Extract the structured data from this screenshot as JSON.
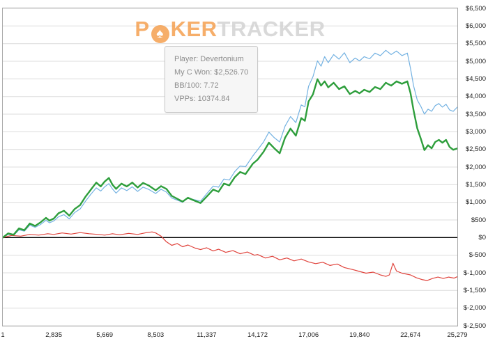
{
  "watermark": {
    "prefix": "P",
    "spade": "♠",
    "middle": "KER",
    "suffix": "TRACKER"
  },
  "tooltip": {
    "lines": [
      "Player: Devertonium",
      "My C Won: $2,526.70",
      "BB/100: 7.72",
      "VPPs: 10374.84"
    ]
  },
  "colors": {
    "green_line": "#2e9e3c",
    "blue_line": "#74b2e2",
    "red_line": "#e0433c",
    "grid": "#dcdcdc",
    "zero_line": "#000000",
    "plot_border": "#a9a9a9",
    "watermark_orange": "#f49a45",
    "watermark_gray": "#d0d0d0"
  },
  "chart_data": {
    "type": "line",
    "title": "",
    "xlabel": "",
    "ylabel": "",
    "grid": "horizontal",
    "legend": "none",
    "x_axis": {
      "min": 1,
      "max": 25279,
      "tick_values": [
        1,
        2835,
        5669,
        8503,
        11337,
        14172,
        17006,
        19840,
        22674,
        25279
      ],
      "tick_labels": [
        "1",
        "2,835",
        "5,669",
        "8,503",
        "11,337",
        "14,172",
        "17,006",
        "19,840",
        "22,674",
        "25,279"
      ]
    },
    "y_axis": {
      "min": -2500,
      "max": 6500,
      "tick_step": 500,
      "tick_values": [
        6500,
        6000,
        5500,
        5000,
        4500,
        4000,
        3500,
        3000,
        2500,
        2000,
        1500,
        1000,
        500,
        0,
        -500,
        -1000,
        -1500,
        -2000,
        -2500
      ],
      "tick_labels": [
        "$6,500",
        "$6,000",
        "$5,500",
        "$5,000",
        "$4,500",
        "$4,000",
        "$3,500",
        "$3,000",
        "$2,500",
        "$2,000",
        "$1,500",
        "$1,000",
        "$500",
        "$0",
        "$-500",
        "$-1,000",
        "$-1,500",
        "$-2,000",
        "$-2,500"
      ]
    },
    "series": [
      {
        "name": "blue-line",
        "color": "#74b2e2",
        "stroke_width": 1.2,
        "points": [
          [
            0,
            0
          ],
          [
            300,
            90
          ],
          [
            600,
            60
          ],
          [
            900,
            220
          ],
          [
            1200,
            180
          ],
          [
            1500,
            350
          ],
          [
            1800,
            290
          ],
          [
            2100,
            370
          ],
          [
            2400,
            490
          ],
          [
            2600,
            420
          ],
          [
            2835,
            470
          ],
          [
            3100,
            590
          ],
          [
            3400,
            650
          ],
          [
            3700,
            530
          ],
          [
            4000,
            710
          ],
          [
            4300,
            810
          ],
          [
            4600,
            1030
          ],
          [
            4900,
            1230
          ],
          [
            5200,
            1410
          ],
          [
            5450,
            1320
          ],
          [
            5669,
            1440
          ],
          [
            5900,
            1530
          ],
          [
            6100,
            1380
          ],
          [
            6300,
            1260
          ],
          [
            6600,
            1410
          ],
          [
            6900,
            1330
          ],
          [
            7200,
            1440
          ],
          [
            7500,
            1310
          ],
          [
            7800,
            1430
          ],
          [
            8100,
            1370
          ],
          [
            8503,
            1250
          ],
          [
            8800,
            1370
          ],
          [
            9100,
            1290
          ],
          [
            9400,
            1120
          ],
          [
            9700,
            1060
          ],
          [
            10000,
            1000
          ],
          [
            10300,
            1120
          ],
          [
            10600,
            1080
          ],
          [
            11000,
            1030
          ],
          [
            11337,
            1240
          ],
          [
            11700,
            1460
          ],
          [
            12000,
            1430
          ],
          [
            12300,
            1660
          ],
          [
            12600,
            1630
          ],
          [
            12900,
            1870
          ],
          [
            13200,
            2030
          ],
          [
            13500,
            2010
          ],
          [
            13900,
            2310
          ],
          [
            14172,
            2490
          ],
          [
            14500,
            2710
          ],
          [
            14800,
            2990
          ],
          [
            15100,
            2830
          ],
          [
            15400,
            2710
          ],
          [
            15700,
            3160
          ],
          [
            16000,
            3430
          ],
          [
            16300,
            3260
          ],
          [
            16600,
            3760
          ],
          [
            16800,
            3710
          ],
          [
            17006,
            4290
          ],
          [
            17250,
            4560
          ],
          [
            17500,
            5010
          ],
          [
            17700,
            4860
          ],
          [
            17900,
            5130
          ],
          [
            18100,
            4960
          ],
          [
            18400,
            5190
          ],
          [
            18700,
            5060
          ],
          [
            19000,
            5240
          ],
          [
            19300,
            4960
          ],
          [
            19600,
            5090
          ],
          [
            19840,
            5010
          ],
          [
            20100,
            5130
          ],
          [
            20400,
            5070
          ],
          [
            20700,
            5230
          ],
          [
            21000,
            5160
          ],
          [
            21300,
            5310
          ],
          [
            21600,
            5190
          ],
          [
            21900,
            5290
          ],
          [
            22200,
            5160
          ],
          [
            22500,
            5230
          ],
          [
            22674,
            4800
          ],
          [
            22850,
            4300
          ],
          [
            23050,
            3900
          ],
          [
            23250,
            3720
          ],
          [
            23450,
            3500
          ],
          [
            23650,
            3640
          ],
          [
            23850,
            3580
          ],
          [
            24050,
            3740
          ],
          [
            24250,
            3800
          ],
          [
            24450,
            3700
          ],
          [
            24650,
            3780
          ],
          [
            24850,
            3620
          ],
          [
            25050,
            3580
          ],
          [
            25279,
            3700
          ]
        ]
      },
      {
        "name": "red-line",
        "color": "#e0433c",
        "stroke_width": 1.2,
        "points": [
          [
            0,
            0
          ],
          [
            500,
            60
          ],
          [
            1000,
            40
          ],
          [
            1500,
            90
          ],
          [
            2000,
            70
          ],
          [
            2500,
            110
          ],
          [
            2835,
            90
          ],
          [
            3300,
            130
          ],
          [
            3800,
            100
          ],
          [
            4300,
            140
          ],
          [
            4800,
            110
          ],
          [
            5300,
            90
          ],
          [
            5669,
            70
          ],
          [
            6100,
            110
          ],
          [
            6500,
            80
          ],
          [
            7000,
            120
          ],
          [
            7500,
            90
          ],
          [
            8000,
            140
          ],
          [
            8300,
            160
          ],
          [
            8503,
            130
          ],
          [
            8800,
            40
          ],
          [
            9100,
            -120
          ],
          [
            9400,
            -220
          ],
          [
            9700,
            -170
          ],
          [
            10000,
            -260
          ],
          [
            10300,
            -210
          ],
          [
            10700,
            -300
          ],
          [
            11000,
            -340
          ],
          [
            11337,
            -290
          ],
          [
            11700,
            -380
          ],
          [
            12000,
            -330
          ],
          [
            12400,
            -420
          ],
          [
            12800,
            -370
          ],
          [
            13200,
            -460
          ],
          [
            13600,
            -410
          ],
          [
            14000,
            -500
          ],
          [
            14172,
            -480
          ],
          [
            14600,
            -580
          ],
          [
            15000,
            -530
          ],
          [
            15400,
            -630
          ],
          [
            15800,
            -580
          ],
          [
            16200,
            -660
          ],
          [
            16600,
            -610
          ],
          [
            17006,
            -690
          ],
          [
            17400,
            -740
          ],
          [
            17800,
            -700
          ],
          [
            18200,
            -790
          ],
          [
            18600,
            -750
          ],
          [
            19000,
            -850
          ],
          [
            19400,
            -900
          ],
          [
            19840,
            -960
          ],
          [
            20200,
            -1010
          ],
          [
            20600,
            -980
          ],
          [
            21000,
            -1060
          ],
          [
            21300,
            -1100
          ],
          [
            21500,
            -1060
          ],
          [
            21700,
            -730
          ],
          [
            21900,
            -950
          ],
          [
            22200,
            -1010
          ],
          [
            22674,
            -1060
          ],
          [
            23000,
            -1140
          ],
          [
            23300,
            -1190
          ],
          [
            23600,
            -1220
          ],
          [
            23900,
            -1160
          ],
          [
            24200,
            -1120
          ],
          [
            24500,
            -1160
          ],
          [
            24800,
            -1120
          ],
          [
            25100,
            -1150
          ],
          [
            25279,
            -1110
          ]
        ]
      },
      {
        "name": "green-line-my-c-won",
        "color": "#2e9e3c",
        "stroke_width": 2.4,
        "points": [
          [
            0,
            0
          ],
          [
            300,
            120
          ],
          [
            600,
            80
          ],
          [
            900,
            260
          ],
          [
            1200,
            210
          ],
          [
            1500,
            400
          ],
          [
            1800,
            330
          ],
          [
            2100,
            430
          ],
          [
            2400,
            560
          ],
          [
            2600,
            480
          ],
          [
            2835,
            540
          ],
          [
            3100,
            690
          ],
          [
            3400,
            760
          ],
          [
            3700,
            620
          ],
          [
            4000,
            810
          ],
          [
            4300,
            920
          ],
          [
            4600,
            1160
          ],
          [
            4900,
            1360
          ],
          [
            5200,
            1560
          ],
          [
            5450,
            1450
          ],
          [
            5669,
            1590
          ],
          [
            5900,
            1690
          ],
          [
            6100,
            1500
          ],
          [
            6300,
            1380
          ],
          [
            6600,
            1530
          ],
          [
            6900,
            1450
          ],
          [
            7200,
            1560
          ],
          [
            7500,
            1420
          ],
          [
            7800,
            1550
          ],
          [
            8100,
            1480
          ],
          [
            8503,
            1340
          ],
          [
            8800,
            1460
          ],
          [
            9100,
            1380
          ],
          [
            9400,
            1180
          ],
          [
            9700,
            1100
          ],
          [
            10000,
            1020
          ],
          [
            10300,
            1130
          ],
          [
            10600,
            1060
          ],
          [
            11000,
            980
          ],
          [
            11337,
            1160
          ],
          [
            11700,
            1360
          ],
          [
            12000,
            1300
          ],
          [
            12300,
            1530
          ],
          [
            12600,
            1480
          ],
          [
            12900,
            1710
          ],
          [
            13200,
            1860
          ],
          [
            13500,
            1800
          ],
          [
            13900,
            2090
          ],
          [
            14172,
            2210
          ],
          [
            14500,
            2430
          ],
          [
            14800,
            2690
          ],
          [
            15100,
            2530
          ],
          [
            15400,
            2390
          ],
          [
            15700,
            2830
          ],
          [
            16000,
            3090
          ],
          [
            16300,
            2890
          ],
          [
            16600,
            3390
          ],
          [
            16800,
            3310
          ],
          [
            17006,
            3860
          ],
          [
            17250,
            4060
          ],
          [
            17500,
            4490
          ],
          [
            17700,
            4310
          ],
          [
            17900,
            4430
          ],
          [
            18100,
            4260
          ],
          [
            18400,
            4390
          ],
          [
            18700,
            4210
          ],
          [
            19000,
            4290
          ],
          [
            19300,
            4070
          ],
          [
            19600,
            4160
          ],
          [
            19840,
            4090
          ],
          [
            20100,
            4190
          ],
          [
            20400,
            4130
          ],
          [
            20700,
            4270
          ],
          [
            21000,
            4210
          ],
          [
            21300,
            4390
          ],
          [
            21600,
            4310
          ],
          [
            21900,
            4430
          ],
          [
            22200,
            4360
          ],
          [
            22500,
            4430
          ],
          [
            22674,
            4100
          ],
          [
            22850,
            3600
          ],
          [
            23050,
            3100
          ],
          [
            23250,
            2800
          ],
          [
            23450,
            2480
          ],
          [
            23650,
            2620
          ],
          [
            23850,
            2530
          ],
          [
            24050,
            2710
          ],
          [
            24250,
            2770
          ],
          [
            24450,
            2690
          ],
          [
            24650,
            2770
          ],
          [
            24850,
            2570
          ],
          [
            25050,
            2490
          ],
          [
            25279,
            2527
          ]
        ]
      }
    ]
  }
}
